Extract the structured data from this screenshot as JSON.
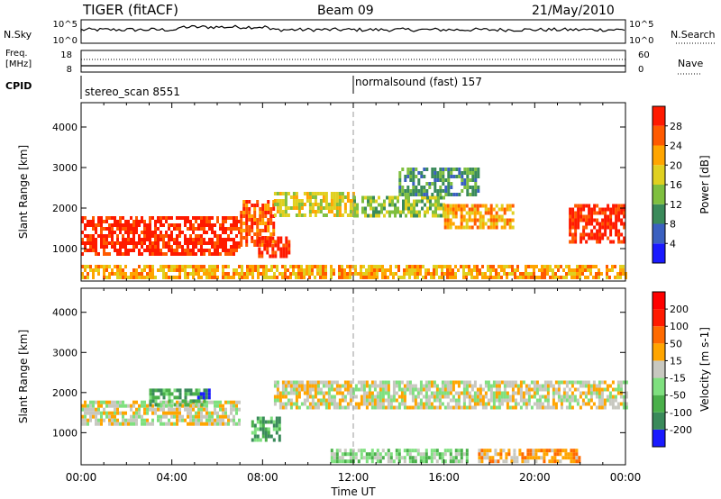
{
  "header": {
    "title": "TIGER (fitACF)",
    "beam": "Beam 09",
    "date": "21/May/2010"
  },
  "status_panels": {
    "nsky_label": "N.Sky",
    "nsky_ticks": [
      "10^5",
      "10^0"
    ],
    "nsearch_label": "N.Search",
    "nsearch_ticks": [
      "10^5",
      "10^0"
    ],
    "freq_label_line1": "Freq.",
    "freq_label_line2": "[MHz]",
    "freq_ticks": [
      "18",
      "8"
    ],
    "nave_label": "Nave",
    "nave_ticks": [
      "60",
      "0"
    ],
    "cpid_label": "CPID",
    "cpid_segments": [
      {
        "name": "stereo_scan 8551",
        "start_hour": 0
      },
      {
        "name": "normalsound (fast) 157",
        "start_hour": 12
      }
    ]
  },
  "chart_data": [
    {
      "type": "heatmap",
      "panel": "power",
      "ylabel": "Slant Range [km]",
      "yticks": [
        "1000",
        "2000",
        "3000",
        "4000"
      ],
      "ylim": [
        200,
        4600
      ],
      "xlim": [
        0,
        24
      ],
      "colorbar_label": "Power [dB]",
      "colorbar_ticks": [
        "4",
        "8",
        "12",
        "16",
        "20",
        "24",
        "28"
      ],
      "colorbar_colors": [
        "#1a1aff",
        "#3a60c0",
        "#3a8a5a",
        "#7fbf3f",
        "#e0d020",
        "#ffa500",
        "#ff5a00",
        "#ff1a00"
      ],
      "bands": [
        {
          "t0": 0.0,
          "t1": 7.0,
          "r0": 900,
          "r1": 1800,
          "level": 7
        },
        {
          "t0": 7.0,
          "t1": 8.5,
          "r0": 1100,
          "r1": 2200,
          "level": 6
        },
        {
          "t0": 7.8,
          "t1": 9.2,
          "r0": 800,
          "r1": 1300,
          "level": 7
        },
        {
          "t0": 8.5,
          "t1": 12.0,
          "r0": 1800,
          "r1": 2400,
          "level": 4
        },
        {
          "t0": 12.0,
          "t1": 16.0,
          "r0": 1800,
          "r1": 2300,
          "level": 3
        },
        {
          "t0": 14.0,
          "t1": 17.5,
          "r0": 2300,
          "r1": 3000,
          "level": 2
        },
        {
          "t0": 16.0,
          "t1": 19.0,
          "r0": 1500,
          "r1": 2100,
          "level": 5
        },
        {
          "t0": 21.5,
          "t1": 24.0,
          "r0": 1200,
          "r1": 2100,
          "level": 7
        },
        {
          "t0": 0.0,
          "t1": 24.0,
          "r0": 300,
          "r1": 600,
          "level": 5
        }
      ]
    },
    {
      "type": "heatmap",
      "panel": "velocity",
      "ylabel": "Slant Range [km]",
      "yticks": [
        "1000",
        "2000",
        "3000",
        "4000"
      ],
      "ylim": [
        200,
        4600
      ],
      "xlim": [
        0,
        24
      ],
      "colorbar_label": "Velocity [m s-1]",
      "colorbar_ticks": [
        "200",
        "100",
        "50",
        "15",
        "-15",
        "-50",
        "-100",
        "-200"
      ],
      "colorbar_colors": [
        "#1a1aff",
        "#3a8a5a",
        "#4ab04a",
        "#7fe07f",
        "#c8c8c0",
        "#ffa500",
        "#ff6a00",
        "#ff1a00",
        "#ff0000"
      ],
      "bands": [
        {
          "t0": 0.0,
          "t1": 7.0,
          "r0": 1200,
          "r1": 1800,
          "level": 4
        },
        {
          "t0": 3.0,
          "t1": 5.5,
          "r0": 1700,
          "r1": 2100,
          "level": 2
        },
        {
          "t0": 5.0,
          "t1": 5.6,
          "r0": 1900,
          "r1": 2100,
          "level": 0
        },
        {
          "t0": 7.5,
          "t1": 8.8,
          "r0": 800,
          "r1": 1400,
          "level": 2
        },
        {
          "t0": 8.5,
          "t1": 24.0,
          "r0": 1600,
          "r1": 2300,
          "level": 4
        },
        {
          "t0": 17.5,
          "t1": 22.0,
          "r0": 300,
          "r1": 600,
          "level": 5
        },
        {
          "t0": 11.0,
          "t1": 17.0,
          "r0": 300,
          "r1": 600,
          "level": 3
        }
      ]
    }
  ],
  "x_axis": {
    "ticks": [
      "00:00",
      "04:00",
      "08:00",
      "12:00",
      "16:00",
      "20:00",
      "00:00"
    ],
    "label": "Time UT"
  }
}
